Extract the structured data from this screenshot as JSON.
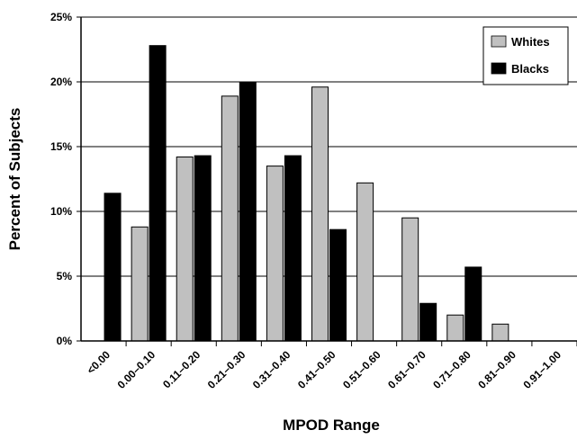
{
  "chart_data": {
    "type": "bar",
    "xlabel": "MPOD Range",
    "ylabel": "Percent of Subjects",
    "ylim": [
      0,
      25
    ],
    "y_ticks": [
      "0%",
      "5%",
      "10%",
      "15%",
      "20%",
      "25%"
    ],
    "y_tick_values": [
      0,
      5,
      10,
      15,
      20,
      25
    ],
    "grid": true,
    "legend_position": "top-right",
    "categories": [
      "<0.00",
      "0.00–0.10",
      "0.11–0.20",
      "0.21–0.30",
      "0.31–0.40",
      "0.41–0.50",
      "0.51–0.60",
      "0.61–0.70",
      "0.71–0.80",
      "0.81–0.90",
      "0.91–1.00"
    ],
    "series": [
      {
        "name": "Whites",
        "color": "#c0c0c0",
        "values": [
          0,
          8.8,
          14.2,
          18.9,
          13.5,
          19.6,
          12.2,
          9.5,
          2.0,
          1.3,
          0
        ]
      },
      {
        "name": "Blacks",
        "color": "#000000",
        "values": [
          11.4,
          22.8,
          14.3,
          20.0,
          14.3,
          8.6,
          0,
          2.9,
          5.7,
          0,
          0
        ]
      }
    ]
  }
}
